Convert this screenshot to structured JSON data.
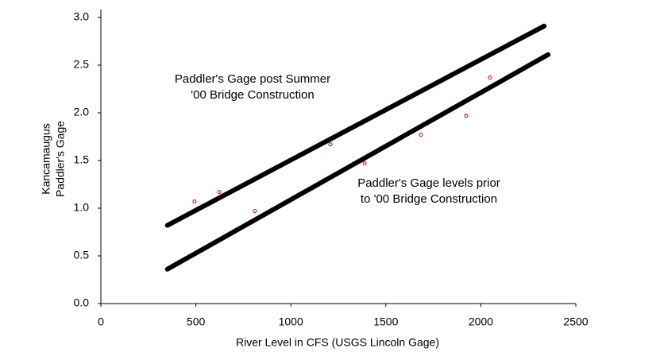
{
  "chart_data": {
    "type": "scatter",
    "xlabel": "River Level in CFS (USGS Lincoln Gage)",
    "ylabel": [
      "Kancamaugus",
      "Paddler's Gage"
    ],
    "annotations": [
      [
        "Paddler's Gage post Summer",
        "'00 Bridge Construction"
      ],
      [
        "Paddler's Gage levels prior",
        "to '00 Bridge Construction"
      ]
    ],
    "xlim": [
      0,
      2500
    ],
    "xticks": [
      0,
      500,
      1000,
      1500,
      2000,
      2500
    ],
    "ylim": [
      0,
      3
    ],
    "yticks": [
      {
        "value": 0,
        "label": "0.0"
      },
      0.5,
      {
        "value": 1,
        "label": "1.0"
      },
      1.5,
      {
        "value": 2,
        "label": "2.0"
      },
      2.5,
      {
        "value": 3,
        "label": "3.0"
      }
    ],
    "grid": false,
    "series": [
      {
        "kind": "markers",
        "color": "#cc0000",
        "x": [
          493,
          623,
          811,
          1208,
          1388,
          1685,
          1923,
          2048
        ],
        "values": [
          1.07,
          1.17,
          0.97,
          1.67,
          1.47,
          1.77,
          1.97,
          2.37
        ]
      },
      {
        "kind": "line",
        "color": "#000000",
        "x": [
          350,
          2333
        ],
        "values": [
          0.82,
          2.91
        ]
      },
      {
        "kind": "line",
        "color": "#000000",
        "x": [
          350,
          2354
        ],
        "values": [
          0.36,
          2.61
        ]
      }
    ]
  }
}
